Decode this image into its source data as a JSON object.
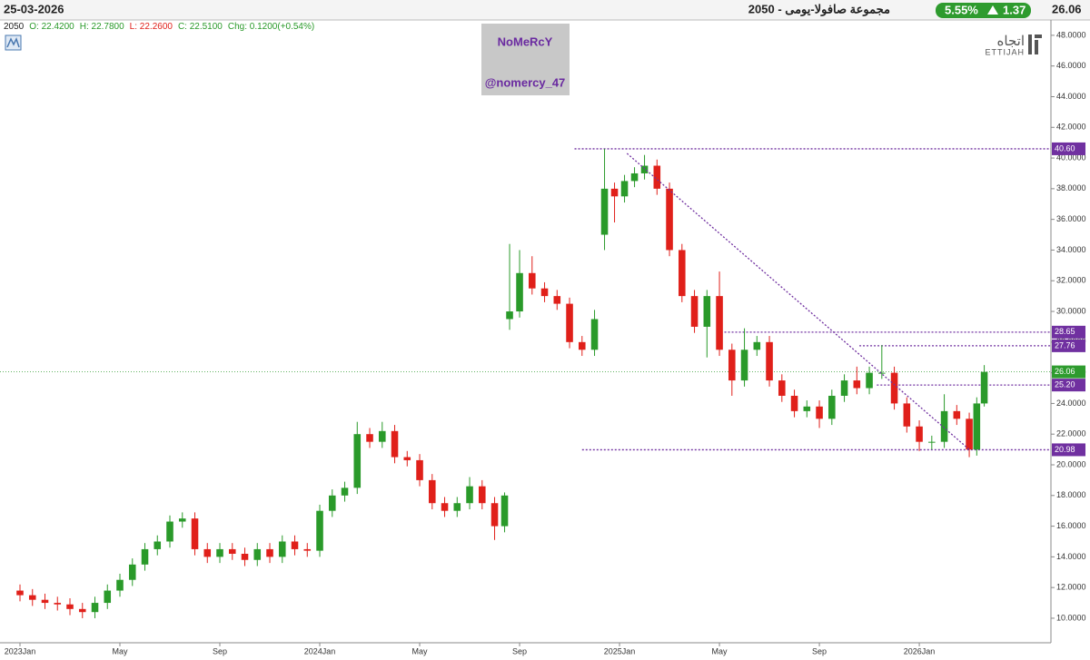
{
  "header": {
    "date": "25-03-2026",
    "title": "مجموعة صافولا-يومى - 2050",
    "change_pct": "5.55%",
    "change": "1.37",
    "last": "26.06"
  },
  "info": [
    "2050",
    "O: 22.4200",
    "H: 22.7800",
    "L: 22.2600",
    "C: 22.5100",
    "Chg: 0.1200(+0.54%)"
  ],
  "watermark": [
    "NoMeRcY",
    "@nomercy_47"
  ],
  "logo": {
    "arabic": "اتجاه",
    "latin": "ETTIJAH"
  },
  "chart_data": {
    "type": "candlestick",
    "x": [
      0,
      0.5,
      1,
      1.5,
      2,
      2.5,
      3,
      3.5,
      4,
      4.5,
      5,
      5.5,
      6,
      6.5,
      7,
      7.5,
      8,
      8.5,
      9,
      9.5,
      10,
      10.5,
      11,
      11.5,
      12,
      12.5,
      13,
      13.5,
      14,
      14.5,
      15,
      15.5,
      16,
      16.5,
      17,
      17.5,
      18,
      18.5,
      19,
      19.4,
      19.6,
      20,
      20.5,
      21,
      21.5,
      22,
      22.5,
      23,
      23.4,
      23.8,
      24.2,
      24.6,
      25,
      25.5,
      26,
      26.5,
      27,
      27.5,
      28,
      28.5,
      29,
      29.5,
      30,
      30.5,
      31,
      31.5,
      32,
      32.5,
      33,
      33.5,
      34,
      34.5,
      35,
      35.5,
      36,
      36.5,
      37,
      37.5,
      38,
      38.3,
      38.6
    ],
    "open": [
      11.8,
      11.5,
      11.2,
      11.0,
      10.9,
      10.6,
      10.4,
      11.0,
      11.8,
      12.5,
      13.5,
      14.5,
      15.0,
      16.3,
      16.5,
      14.5,
      14.0,
      14.5,
      14.2,
      13.8,
      14.5,
      14.0,
      15.0,
      14.5,
      14.4,
      17.0,
      18.0,
      18.5,
      22.0,
      21.5,
      22.2,
      20.5,
      20.3,
      19.0,
      17.5,
      17.0,
      17.5,
      18.6,
      17.5,
      16.0,
      29.5,
      30.0,
      32.5,
      31.5,
      31.0,
      30.5,
      28.0,
      27.5,
      35.0,
      38.0,
      37.5,
      38.5,
      39.0,
      39.5,
      38.0,
      34.0,
      31.0,
      29.0,
      31.0,
      27.5,
      25.5,
      27.5,
      28.0,
      25.5,
      24.5,
      23.5,
      23.8,
      23.0,
      24.5,
      25.5,
      25.0,
      26.0,
      26.0,
      24.0,
      22.5,
      21.5,
      21.5,
      23.5,
      23.0,
      21.0,
      24.0
    ],
    "high": [
      12.2,
      11.9,
      11.6,
      11.4,
      11.3,
      11.0,
      11.4,
      12.2,
      12.9,
      13.9,
      14.9,
      15.4,
      16.7,
      16.9,
      16.9,
      14.9,
      14.9,
      14.9,
      14.6,
      14.9,
      14.9,
      15.4,
      15.4,
      14.9,
      17.4,
      18.4,
      18.9,
      22.8,
      22.4,
      22.8,
      22.6,
      20.9,
      20.7,
      19.4,
      17.9,
      17.9,
      19.2,
      19.0,
      17.9,
      18.2,
      34.4,
      34.0,
      33.6,
      31.9,
      31.4,
      30.9,
      28.4,
      30.1,
      40.6,
      38.4,
      38.9,
      39.4,
      40.2,
      39.9,
      38.4,
      34.4,
      31.4,
      31.4,
      32.6,
      27.9,
      28.9,
      28.4,
      28.4,
      25.9,
      24.9,
      24.2,
      24.2,
      24.9,
      25.9,
      26.4,
      26.4,
      27.8,
      26.4,
      24.4,
      22.9,
      21.9,
      24.6,
      23.9,
      23.4,
      24.4,
      26.5
    ],
    "low": [
      11.1,
      10.8,
      10.6,
      10.5,
      10.2,
      10.0,
      10.0,
      10.6,
      11.4,
      12.1,
      13.1,
      14.1,
      14.6,
      15.9,
      14.1,
      13.6,
      13.6,
      13.8,
      13.4,
      13.4,
      13.6,
      13.6,
      14.1,
      14.0,
      14.0,
      16.6,
      17.6,
      18.1,
      21.1,
      21.1,
      20.1,
      19.9,
      18.6,
      17.1,
      16.6,
      16.6,
      17.1,
      17.1,
      15.1,
      15.6,
      28.8,
      29.6,
      31.1,
      30.6,
      30.1,
      27.6,
      27.1,
      27.1,
      34.0,
      35.8,
      37.1,
      38.1,
      38.6,
      37.6,
      33.6,
      30.6,
      28.6,
      27.0,
      27.1,
      24.5,
      25.1,
      27.1,
      25.1,
      24.1,
      23.1,
      23.1,
      22.4,
      22.6,
      24.1,
      24.6,
      24.6,
      25.6,
      23.6,
      22.1,
      20.9,
      21.0,
      21.1,
      22.6,
      20.5,
      20.6,
      23.8
    ],
    "close": [
      11.5,
      11.2,
      11.0,
      10.9,
      10.6,
      10.4,
      11.0,
      11.8,
      12.5,
      13.5,
      14.5,
      15.0,
      16.3,
      16.5,
      14.5,
      14.0,
      14.5,
      14.2,
      13.8,
      14.5,
      14.0,
      15.0,
      14.5,
      14.4,
      17.0,
      18.0,
      18.5,
      22.0,
      21.5,
      22.2,
      20.5,
      20.3,
      19.0,
      17.5,
      17.0,
      17.5,
      18.6,
      17.5,
      16.0,
      18.0,
      30.0,
      32.5,
      31.5,
      31.0,
      30.5,
      28.0,
      27.5,
      29.5,
      38.0,
      37.5,
      38.5,
      39.0,
      39.5,
      38.0,
      34.0,
      31.0,
      29.0,
      31.0,
      27.5,
      25.5,
      27.5,
      28.0,
      25.5,
      24.5,
      23.5,
      23.8,
      23.0,
      24.5,
      25.5,
      25.0,
      26.0,
      26.0,
      24.0,
      22.5,
      21.5,
      21.5,
      23.5,
      23.0,
      21.0,
      24.0,
      26.06
    ],
    "up_color": "#2a9a2a",
    "down_color": "#e0201a",
    "xlim": [
      -0.8,
      41.27
    ],
    "ylim": [
      8.4,
      49
    ],
    "xticks": [
      {
        "value": 0,
        "label": "2023Jan"
      },
      {
        "value": 4,
        "label": "May"
      },
      {
        "value": 8,
        "label": "Sep"
      },
      {
        "value": 12,
        "label": "2024Jan"
      },
      {
        "value": 16,
        "label": "May"
      },
      {
        "value": 20,
        "label": "Sep"
      },
      {
        "value": 24,
        "label": "2025Jan"
      },
      {
        "value": 28,
        "label": "May"
      },
      {
        "value": 32,
        "label": "Sep"
      },
      {
        "value": 36,
        "label": "2026Jan"
      }
    ],
    "yticks": [
      {
        "value": 10,
        "label": "10.0000"
      },
      {
        "value": 12,
        "label": "12.0000"
      },
      {
        "value": 14,
        "label": "14.0000"
      },
      {
        "value": 16,
        "label": "16.0000"
      },
      {
        "value": 18,
        "label": "18.0000"
      },
      {
        "value": 20,
        "label": "20.0000"
      },
      {
        "value": 22,
        "label": "22.0000"
      },
      {
        "value": 24,
        "label": "24.0000"
      },
      {
        "value": 26,
        "label": "26.0000"
      },
      {
        "value": 28,
        "label": "28.0000"
      },
      {
        "value": 30,
        "label": "30.0000"
      },
      {
        "value": 32,
        "label": "32.0000"
      },
      {
        "value": 34,
        "label": "34.0000"
      },
      {
        "value": 36,
        "label": "36.0000"
      },
      {
        "value": 38,
        "label": "38.0000"
      },
      {
        "value": 40,
        "label": "40.0000"
      },
      {
        "value": 42,
        "label": "42.0000"
      },
      {
        "value": 44,
        "label": "44.0000"
      },
      {
        "value": 46,
        "label": "46.0000"
      },
      {
        "value": 48,
        "label": "48.0000"
      }
    ],
    "levels": [
      {
        "value": 40.6,
        "label": "40.60",
        "from": 22.2
      },
      {
        "value": 28.65,
        "label": "28.65",
        "from": 28.2
      },
      {
        "value": 27.76,
        "label": "27.76",
        "from": 33.6
      },
      {
        "value": 25.2,
        "label": "25.20",
        "from": 34.3
      },
      {
        "value": 20.98,
        "label": "20.98",
        "from": 22.5
      }
    ],
    "level_color": "#7030a0",
    "last_price": {
      "value": 26.06,
      "label": "26.06",
      "color": "#2e9b2e"
    },
    "trendline": {
      "x": [
        24.3,
        38.0
      ],
      "y": [
        40.3,
        21.0
      ]
    }
  }
}
